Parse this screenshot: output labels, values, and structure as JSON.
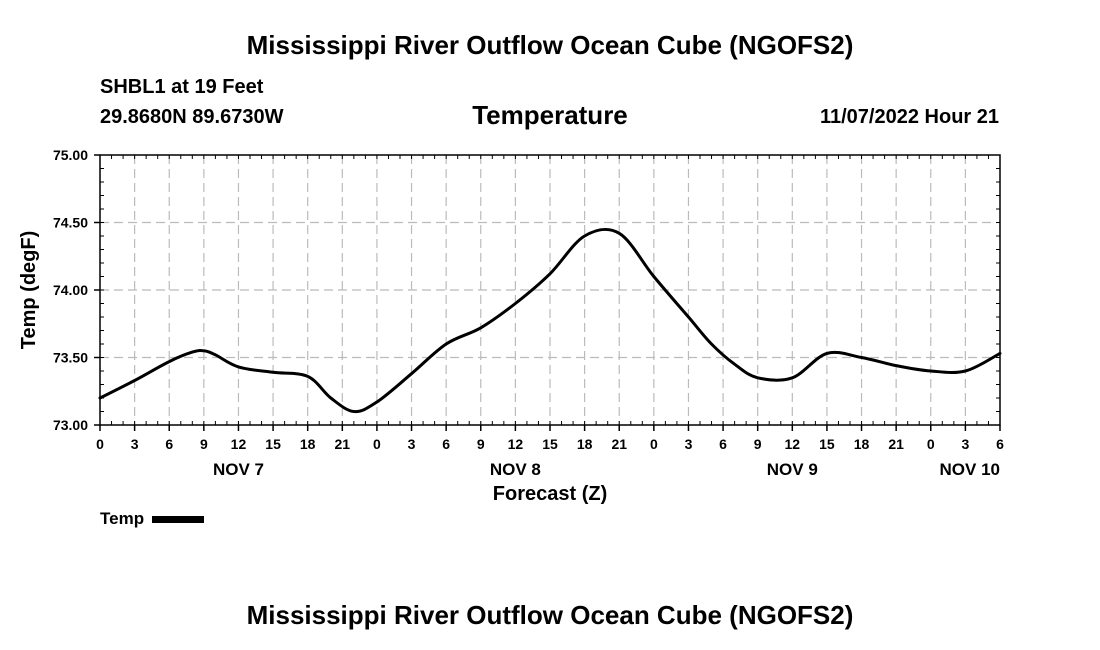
{
  "header": {
    "title": "Mississippi River Outflow Ocean Cube (NGOFS2)",
    "station": "SHBL1 at 19 Feet",
    "coords": "29.8680N  89.6730W",
    "variable": "Temperature",
    "datetime": "11/07/2022 Hour 21"
  },
  "footer": {
    "title": "Mississippi River Outflow Ocean Cube (NGOFS2)"
  },
  "legend": {
    "label": "Temp"
  },
  "chart_data": {
    "type": "line",
    "title": "Temperature",
    "xlabel": "Forecast (Z)",
    "ylabel": "Temp (degF)",
    "ylim": [
      73.0,
      75.0
    ],
    "xlim_hours": [
      0,
      78
    ],
    "grid": true,
    "y_ticks": [
      "73.00",
      "73.50",
      "74.00",
      "74.50",
      "75.00"
    ],
    "y_tick_values": [
      73.0,
      73.5,
      74.0,
      74.5,
      75.0
    ],
    "x_tick_hours": [
      0,
      3,
      6,
      9,
      12,
      15,
      18,
      21,
      24,
      27,
      30,
      33,
      36,
      39,
      42,
      45,
      48,
      51,
      54,
      57,
      60,
      63,
      66,
      69,
      72,
      75,
      78
    ],
    "x_tick_labels": [
      "0",
      "3",
      "6",
      "9",
      "12",
      "15",
      "18",
      "21",
      "0",
      "3",
      "6",
      "9",
      "12",
      "15",
      "18",
      "21",
      "0",
      "3",
      "6",
      "9",
      "12",
      "15",
      "18",
      "21",
      "0",
      "3",
      "6"
    ],
    "day_labels": [
      {
        "label": "NOV 7",
        "hour": 12
      },
      {
        "label": "NOV 8",
        "hour": 36
      },
      {
        "label": "NOV 9",
        "hour": 60
      },
      {
        "label": "NOV 10",
        "hour": 78
      }
    ],
    "series": [
      {
        "name": "Temp",
        "x": [
          0,
          3,
          6,
          8,
          9,
          10,
          12,
          15,
          18,
          20,
          22,
          24,
          27,
          30,
          33,
          36,
          39,
          42,
          45,
          48,
          51,
          53,
          55,
          57,
          60,
          63,
          66,
          69,
          72,
          75,
          78
        ],
        "values": [
          73.2,
          73.33,
          73.47,
          73.54,
          73.55,
          73.52,
          73.43,
          73.39,
          73.36,
          73.2,
          73.1,
          73.17,
          73.38,
          73.6,
          73.72,
          73.9,
          74.12,
          74.4,
          74.42,
          74.1,
          73.8,
          73.6,
          73.45,
          73.35,
          73.35,
          73.53,
          73.5,
          73.44,
          73.4,
          73.4,
          73.53
        ]
      }
    ]
  }
}
